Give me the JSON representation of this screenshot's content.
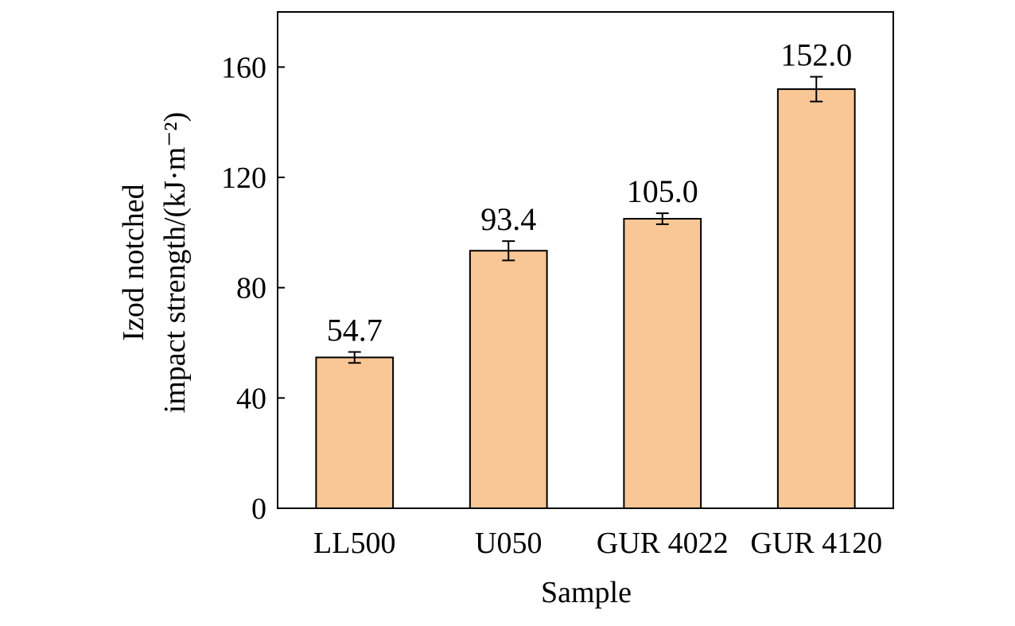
{
  "chart_data": {
    "type": "bar",
    "categories": [
      "LL500",
      "U050",
      "GUR 4022",
      "GUR 4120"
    ],
    "values": [
      54.7,
      93.4,
      105.0,
      152.0
    ],
    "value_labels": [
      "54.7",
      "93.4",
      "105.0",
      "152.0"
    ],
    "errors": [
      2.0,
      3.5,
      2.0,
      4.5
    ],
    "xlabel": "Sample",
    "ylabel": [
      "Izod notched",
      "impact strength/(kJ·m⁻²)"
    ],
    "ylim": [
      0,
      180
    ],
    "yticks": [
      0,
      40,
      80,
      120,
      160
    ],
    "grid": false,
    "legend": "none",
    "bar_color": "#f9c796",
    "bar_edge_color": "#000000"
  }
}
